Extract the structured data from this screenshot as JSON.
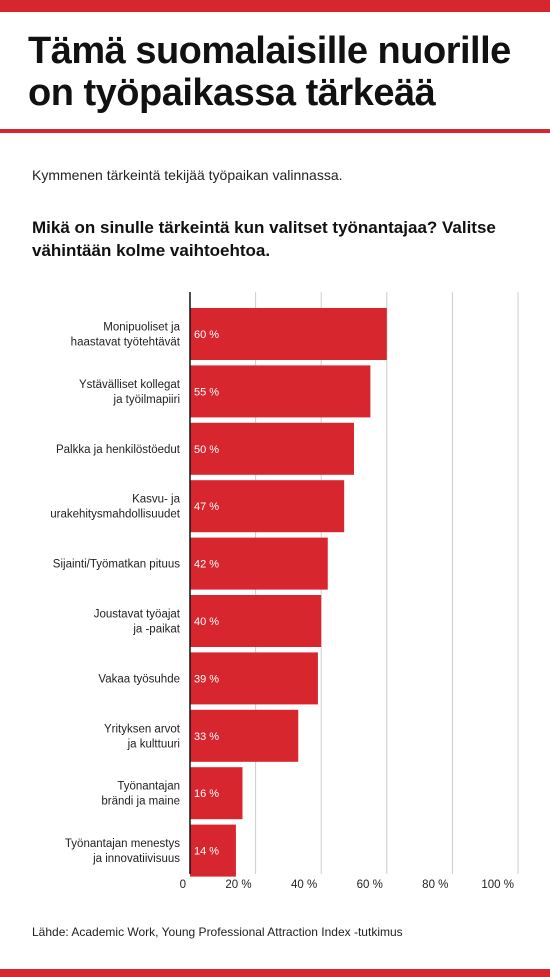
{
  "header": {
    "title": "Tämä suomalaisille nuorille on työpaikassa tärkeää",
    "subtitle": "Kymmenen tärkeintä tekijää työpaikan valinnassa.",
    "question": "Mikä on sinulle tärkeintä kun valitset työnantajaa? Valitse vähintään kolme vaihtoehtoa."
  },
  "footer": {
    "source": "Lähde: Academic Work, Young Professional Attraction Index -tutkimus"
  },
  "colors": {
    "accent": "#d7262e",
    "bar": "#d7262e",
    "gridline": "#cccccc",
    "text": "#111111"
  },
  "chart_data": {
    "type": "bar",
    "orientation": "horizontal",
    "categories": [
      "Monipuoliset ja haastavat työtehtävät",
      "Ystävälliset kollegat ja työilmapiiri",
      "Palkka ja henkilöstöedut",
      "Kasvu- ja urakehitysmahdollisuudet",
      "Sijainti/Työmatkan pituus",
      "Joustavat työajat ja -paikat",
      "Vakaa työsuhde",
      "Yrityksen arvot ja kulttuuri",
      "Työnantajan brändi ja maine",
      "Työnantajan menestys ja innovatiivisuus"
    ],
    "values": [
      60,
      55,
      50,
      47,
      42,
      40,
      39,
      33,
      16,
      14
    ],
    "value_labels": [
      "60 %",
      "55 %",
      "50 %",
      "47 %",
      "42 %",
      "40 %",
      "39 %",
      "33 %",
      "16 %",
      "14 %"
    ],
    "xlim": [
      0,
      100
    ],
    "xticks": [
      0,
      20,
      40,
      60,
      80,
      100
    ],
    "xtick_labels": [
      "0",
      "20 %",
      "40 %",
      "60 %",
      "80 %",
      "100 %"
    ],
    "grid": true,
    "legend": "none"
  }
}
